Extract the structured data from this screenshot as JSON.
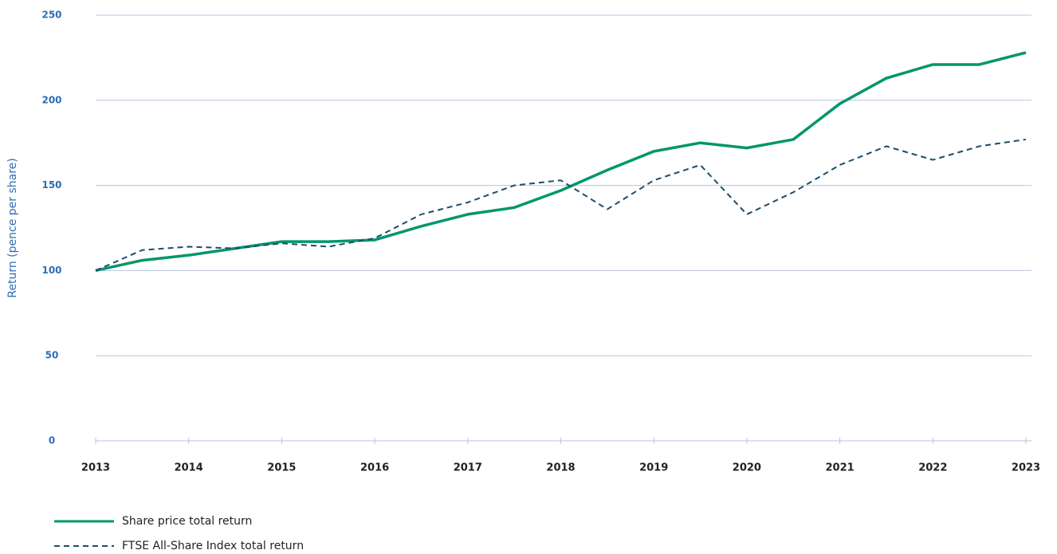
{
  "chart_data": {
    "type": "line",
    "y_label": "Return (pence per share)",
    "x": [
      2013,
      2013.5,
      2014,
      2014.5,
      2015,
      2015.5,
      2016,
      2016.5,
      2017,
      2017.5,
      2018,
      2018.5,
      2019,
      2019.5,
      2020,
      2020.5,
      2021,
      2021.5,
      2022,
      2022.5,
      2023
    ],
    "series": [
      {
        "name": "Share price total return",
        "color": "#00966c",
        "dashed": false,
        "values": [
          100,
          106,
          109,
          113,
          117,
          117,
          118,
          126,
          133,
          137,
          147,
          159,
          170,
          175,
          172,
          177,
          198,
          213,
          221,
          221,
          228
        ]
      },
      {
        "name": "FTSE All-Share Index total return",
        "color": "#1c4e6b",
        "dashed": true,
        "values": [
          100,
          112,
          114,
          113,
          116,
          114,
          119,
          133,
          140,
          150,
          153,
          136,
          153,
          162,
          133,
          146,
          162,
          173,
          165,
          173,
          177
        ]
      }
    ],
    "xlim": [
      2013,
      2023
    ],
    "xticks": [
      2013,
      2014,
      2015,
      2016,
      2017,
      2018,
      2019,
      2020,
      2021,
      2022,
      2023
    ],
    "ylim": [
      0,
      250
    ],
    "yticks": [
      0,
      50,
      100,
      150,
      200,
      250
    ],
    "grid": true,
    "legend": "bottom-left"
  }
}
